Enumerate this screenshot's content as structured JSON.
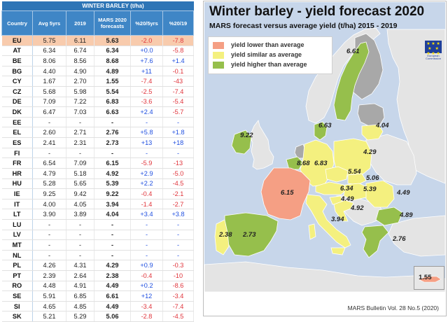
{
  "table": {
    "group_header": "WINTER BARLEY (t/ha)",
    "columns": [
      "Country",
      "Avg 5yrs",
      "2019",
      "MARS 2020 forecasts",
      "%20/5yrs",
      "%20/19"
    ],
    "rows": [
      {
        "country": "EU",
        "avg": "5.75",
        "y2019": "6.11",
        "forecast": "5.63",
        "p5": "-2.0",
        "p19": "-7.8"
      },
      {
        "country": "AT",
        "avg": "6.34",
        "y2019": "6.74",
        "forecast": "6.34",
        "p5": "+0.0",
        "p19": "-5.8"
      },
      {
        "country": "BE",
        "avg": "8.06",
        "y2019": "8.56",
        "forecast": "8.68",
        "p5": "+7.6",
        "p19": "+1.4"
      },
      {
        "country": "BG",
        "avg": "4.40",
        "y2019": "4.90",
        "forecast": "4.89",
        "p5": "+11",
        "p19": "-0.1"
      },
      {
        "country": "CY",
        "avg": "1.67",
        "y2019": "2.70",
        "forecast": "1.55",
        "p5": "-7.4",
        "p19": "-43"
      },
      {
        "country": "CZ",
        "avg": "5.68",
        "y2019": "5.98",
        "forecast": "5.54",
        "p5": "-2.5",
        "p19": "-7.4"
      },
      {
        "country": "DE",
        "avg": "7.09",
        "y2019": "7.22",
        "forecast": "6.83",
        "p5": "-3.6",
        "p19": "-5.4"
      },
      {
        "country": "DK",
        "avg": "6.47",
        "y2019": "7.03",
        "forecast": "6.63",
        "p5": "+2.4",
        "p19": "-5.7"
      },
      {
        "country": "EE",
        "avg": "-",
        "y2019": "-",
        "forecast": "-",
        "p5": "-",
        "p19": "-"
      },
      {
        "country": "EL",
        "avg": "2.60",
        "y2019": "2.71",
        "forecast": "2.76",
        "p5": "+5.8",
        "p19": "+1.8"
      },
      {
        "country": "ES",
        "avg": "2.41",
        "y2019": "2.31",
        "forecast": "2.73",
        "p5": "+13",
        "p19": "+18"
      },
      {
        "country": "FI",
        "avg": "-",
        "y2019": "-",
        "forecast": "-",
        "p5": "-",
        "p19": "-"
      },
      {
        "country": "FR",
        "avg": "6.54",
        "y2019": "7.09",
        "forecast": "6.15",
        "p5": "-5.9",
        "p19": "-13"
      },
      {
        "country": "HR",
        "avg": "4.79",
        "y2019": "5.18",
        "forecast": "4.92",
        "p5": "+2.9",
        "p19": "-5.0"
      },
      {
        "country": "HU",
        "avg": "5.28",
        "y2019": "5.65",
        "forecast": "5.39",
        "p5": "+2.2",
        "p19": "-4.5"
      },
      {
        "country": "IE",
        "avg": "9.25",
        "y2019": "9.42",
        "forecast": "9.22",
        "p5": "-0.4",
        "p19": "-2.1"
      },
      {
        "country": "IT",
        "avg": "4.00",
        "y2019": "4.05",
        "forecast": "3.94",
        "p5": "-1.4",
        "p19": "-2.7"
      },
      {
        "country": "LT",
        "avg": "3.90",
        "y2019": "3.89",
        "forecast": "4.04",
        "p5": "+3.4",
        "p19": "+3.8"
      },
      {
        "country": "LU",
        "avg": "-",
        "y2019": "-",
        "forecast": "-",
        "p5": "-",
        "p19": "-"
      },
      {
        "country": "LV",
        "avg": "-",
        "y2019": "-",
        "forecast": "-",
        "p5": "-",
        "p19": "-"
      },
      {
        "country": "MT",
        "avg": "-",
        "y2019": "-",
        "forecast": "-",
        "p5": "-",
        "p19": "-"
      },
      {
        "country": "NL",
        "avg": "-",
        "y2019": "-",
        "forecast": "-",
        "p5": "-",
        "p19": "-"
      },
      {
        "country": "PL",
        "avg": "4.26",
        "y2019": "4.31",
        "forecast": "4.29",
        "p5": "+0.9",
        "p19": "-0.3"
      },
      {
        "country": "PT",
        "avg": "2.39",
        "y2019": "2.64",
        "forecast": "2.38",
        "p5": "-0.4",
        "p19": "-10"
      },
      {
        "country": "RO",
        "avg": "4.48",
        "y2019": "4.91",
        "forecast": "4.49",
        "p5": "+0.2",
        "p19": "-8.6"
      },
      {
        "country": "SE",
        "avg": "5.91",
        "y2019": "6.85",
        "forecast": "6.61",
        "p5": "+12",
        "p19": "-3.4"
      },
      {
        "country": "SI",
        "avg": "4.65",
        "y2019": "4.85",
        "forecast": "4.49",
        "p5": "-3.4",
        "p19": "-7.4"
      },
      {
        "country": "SK",
        "avg": "5.21",
        "y2019": "5.29",
        "forecast": "5.06",
        "p5": "-2.8",
        "p19": "-4.5"
      }
    ]
  },
  "map": {
    "title": "Winter barley - yield forecast 2020",
    "subtitle": "MARS forecast versus average yield (t/ha) 2015 - 2019",
    "legend": [
      {
        "label": "yield lower than average",
        "color": "#f59f84"
      },
      {
        "label": "yield similar as average",
        "color": "#f4f07f"
      },
      {
        "label": "yield higher than average",
        "color": "#96bf4c"
      }
    ],
    "colors": {
      "sea": "#c7d6ea",
      "non_eu": "#e4e4e4",
      "no_data": "#a8a8a8",
      "border": "#ffffff"
    },
    "labels": {
      "se": "6.61",
      "dk": "6.63",
      "lt": "4.04",
      "ie": "9.22",
      "be": "8.68",
      "de": "6.83",
      "pl": "4.29",
      "cz": "5.54",
      "sk": "5.06",
      "fr": "6.15",
      "at": "6.34",
      "hu": "5.39",
      "ro": "4.49",
      "si": "4.49",
      "hr": "4.92",
      "bg": "4.89",
      "it": "3.94",
      "pt": "2.38",
      "es": "2.73",
      "el": "2.76",
      "cy": "1.55"
    },
    "credit": "MARS Bulletin Vol. 28 No.5 (2020)",
    "logo_text": "European Commission"
  }
}
